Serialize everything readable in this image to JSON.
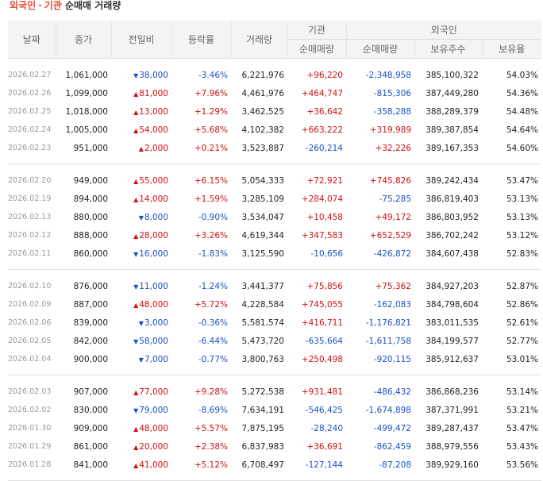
{
  "header": {
    "title_part1": "외국인",
    "title_sep": "·",
    "title_part2": "기관",
    "title_part3": "순매매 거래량"
  },
  "columns": {
    "date": "날짜",
    "close": "종가",
    "change": "전일비",
    "rate": "등락률",
    "volume": "거래량",
    "inst_group": "기관",
    "foreign_group": "외국인",
    "inst_net": "순매매량",
    "foreign_net": "순매매량",
    "holdings": "보유주수",
    "ratio": "보유율"
  },
  "groups": [
    [
      {
        "date": "2026.02.27",
        "close": "1,061,000",
        "dir": "down",
        "change": "38,000",
        "rate": "-3.46%",
        "volume": "6,221,976",
        "inst": "+96,220",
        "foreign": "-2,348,958",
        "holdings": "385,100,322",
        "ratio": "54.03%"
      },
      {
        "date": "2026.02.26",
        "close": "1,099,000",
        "dir": "up",
        "change": "81,000",
        "rate": "+7.96%",
        "volume": "4,461,976",
        "inst": "+464,747",
        "foreign": "-815,306",
        "holdings": "387,449,280",
        "ratio": "54.36%"
      },
      {
        "date": "2026.02.25",
        "close": "1,018,000",
        "dir": "up",
        "change": "13,000",
        "rate": "+1.29%",
        "volume": "3,462,525",
        "inst": "+36,642",
        "foreign": "-358,288",
        "holdings": "388,289,379",
        "ratio": "54.48%"
      },
      {
        "date": "2026.02.24",
        "close": "1,005,000",
        "dir": "up",
        "change": "54,000",
        "rate": "+5.68%",
        "volume": "4,102,382",
        "inst": "+663,222",
        "foreign": "+319,989",
        "holdings": "389,387,854",
        "ratio": "54.64%"
      },
      {
        "date": "2026.02.23",
        "close": "951,000",
        "dir": "up",
        "change": "2,000",
        "rate": "+0.21%",
        "volume": "3,523,887",
        "inst": "-260,214",
        "foreign": "+32,226",
        "holdings": "389,167,353",
        "ratio": "54.60%"
      }
    ],
    [
      {
        "date": "2026.02.20",
        "close": "949,000",
        "dir": "up",
        "change": "55,000",
        "rate": "+6.15%",
        "volume": "5,054,333",
        "inst": "+72,921",
        "foreign": "+745,826",
        "holdings": "389,242,434",
        "ratio": "53.47%"
      },
      {
        "date": "2026.02.19",
        "close": "894,000",
        "dir": "up",
        "change": "14,000",
        "rate": "+1.59%",
        "volume": "3,285,109",
        "inst": "+284,074",
        "foreign": "-75,285",
        "holdings": "386,819,403",
        "ratio": "53.13%"
      },
      {
        "date": "2026.02.13",
        "close": "880,000",
        "dir": "down",
        "change": "8,000",
        "rate": "-0.90%",
        "volume": "3,534,047",
        "inst": "+10,458",
        "foreign": "+49,172",
        "holdings": "386,803,952",
        "ratio": "53.13%"
      },
      {
        "date": "2026.02.12",
        "close": "888,000",
        "dir": "up",
        "change": "28,000",
        "rate": "+3.26%",
        "volume": "4,619,344",
        "inst": "+347,583",
        "foreign": "+652,529",
        "holdings": "386,702,242",
        "ratio": "53.12%"
      },
      {
        "date": "2026.02.11",
        "close": "860,000",
        "dir": "down",
        "change": "16,000",
        "rate": "-1.83%",
        "volume": "3,125,590",
        "inst": "-10,656",
        "foreign": "-426,872",
        "holdings": "384,607,438",
        "ratio": "52.83%"
      }
    ],
    [
      {
        "date": "2026.02.10",
        "close": "876,000",
        "dir": "down",
        "change": "11,000",
        "rate": "-1.24%",
        "volume": "3,441,377",
        "inst": "+75,856",
        "foreign": "+75,362",
        "holdings": "384,927,203",
        "ratio": "52.87%"
      },
      {
        "date": "2026.02.09",
        "close": "887,000",
        "dir": "up",
        "change": "48,000",
        "rate": "+5.72%",
        "volume": "4,228,584",
        "inst": "+745,055",
        "foreign": "-162,083",
        "holdings": "384,798,604",
        "ratio": "52.86%"
      },
      {
        "date": "2026.02.06",
        "close": "839,000",
        "dir": "down",
        "change": "3,000",
        "rate": "-0.36%",
        "volume": "5,581,574",
        "inst": "+416,711",
        "foreign": "-1,176,821",
        "holdings": "383,011,535",
        "ratio": "52.61%"
      },
      {
        "date": "2026.02.05",
        "close": "842,000",
        "dir": "down",
        "change": "58,000",
        "rate": "-6.44%",
        "volume": "5,473,720",
        "inst": "-635,664",
        "foreign": "-1,611,758",
        "holdings": "384,199,577",
        "ratio": "52.77%"
      },
      {
        "date": "2026.02.04",
        "close": "900,000",
        "dir": "down",
        "change": "7,000",
        "rate": "-0.77%",
        "volume": "3,800,763",
        "inst": "+250,498",
        "foreign": "-920,115",
        "holdings": "385,912,637",
        "ratio": "53.01%"
      }
    ],
    [
      {
        "date": "2026.02.03",
        "close": "907,000",
        "dir": "up",
        "change": "77,000",
        "rate": "+9.28%",
        "volume": "5,272,538",
        "inst": "+931,481",
        "foreign": "-486,432",
        "holdings": "386,868,236",
        "ratio": "53.14%"
      },
      {
        "date": "2026.02.02",
        "close": "830,000",
        "dir": "down",
        "change": "79,000",
        "rate": "-8.69%",
        "volume": "7,634,191",
        "inst": "-546,425",
        "foreign": "-1,674,898",
        "holdings": "387,371,991",
        "ratio": "53.21%"
      },
      {
        "date": "2026.01.30",
        "close": "909,000",
        "dir": "up",
        "change": "48,000",
        "rate": "+5.57%",
        "volume": "7,875,195",
        "inst": "-28,240",
        "foreign": "-499,472",
        "holdings": "389,287,437",
        "ratio": "53.47%"
      },
      {
        "date": "2026.01.29",
        "close": "861,000",
        "dir": "up",
        "change": "20,000",
        "rate": "+2.38%",
        "volume": "6,837,983",
        "inst": "+36,691",
        "foreign": "-862,459",
        "holdings": "388,979,556",
        "ratio": "53.43%"
      },
      {
        "date": "2026.01.28",
        "close": "841,000",
        "dir": "up",
        "change": "41,000",
        "rate": "+5.12%",
        "volume": "6,708,497",
        "inst": "-127,144",
        "foreign": "-87,208",
        "holdings": "389,929,160",
        "ratio": "53.56%"
      }
    ]
  ],
  "colors": {
    "up": "#d40f0f",
    "down": "#1851c6",
    "title_accent": "#e2472d"
  }
}
